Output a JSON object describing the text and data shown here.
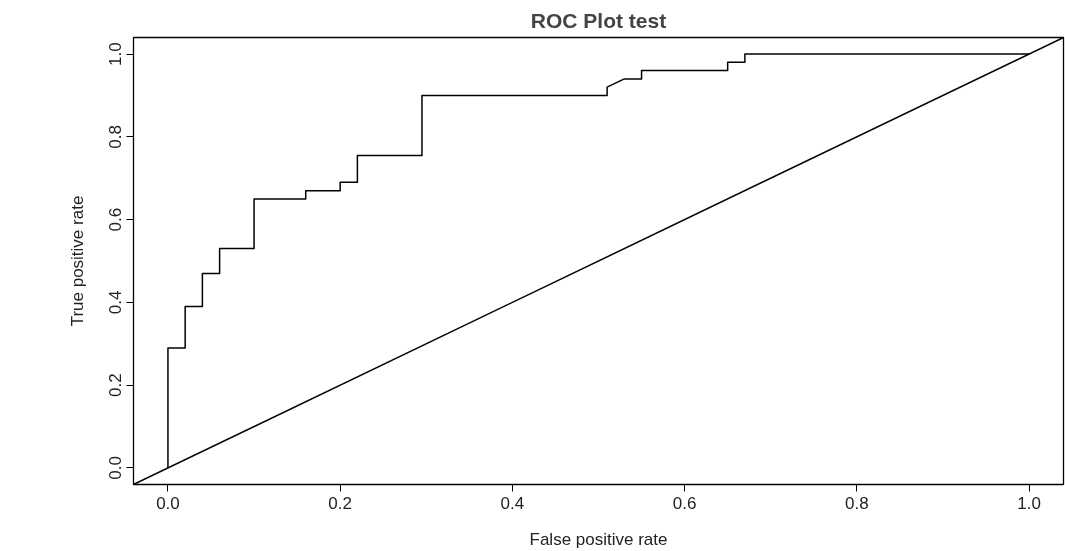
{
  "chart_data": {
    "type": "line",
    "title": "ROC Plot test",
    "xlabel": "False positive rate",
    "ylabel": "True positive rate",
    "series": [
      {
        "color": "#000000",
        "x": [
          0,
          0,
          0.02,
          0.02,
          0.04,
          0.04,
          0.06,
          0.06,
          0.1,
          0.1,
          0.16,
          0.16,
          0.2,
          0.2,
          0.22,
          0.22,
          0.295,
          0.295,
          0.51,
          0.51,
          0.53,
          0.55,
          0.55,
          0.65,
          0.65,
          0.67,
          0.67,
          1.0
        ],
        "values": [
          0,
          0.29,
          0.29,
          0.39,
          0.39,
          0.47,
          0.47,
          0.53,
          0.53,
          0.65,
          0.65,
          0.67,
          0.67,
          0.69,
          0.69,
          0.755,
          0.755,
          0.9,
          0.9,
          0.92,
          0.94,
          0.94,
          0.96,
          0.96,
          0.98,
          0.98,
          1.0,
          1.0
        ]
      },
      {
        "color": "#000000",
        "x": [
          -0.04,
          1.04
        ],
        "values": [
          -0.04,
          1.04
        ]
      }
    ],
    "xlim": [
      -0.04,
      1.04
    ],
    "ylim": [
      -0.04,
      1.04
    ],
    "xticks": [
      {
        "value": 0,
        "label": "0.0"
      },
      0.2,
      0.4,
      0.6,
      0.8,
      {
        "value": 1,
        "label": "1.0"
      }
    ],
    "yticks": [
      {
        "value": 0,
        "label": "0.0"
      },
      0.2,
      0.4,
      0.6,
      0.8,
      {
        "value": 1,
        "label": "1.0"
      }
    ],
    "grid": false,
    "marker": "none",
    "line_style": "solid"
  }
}
